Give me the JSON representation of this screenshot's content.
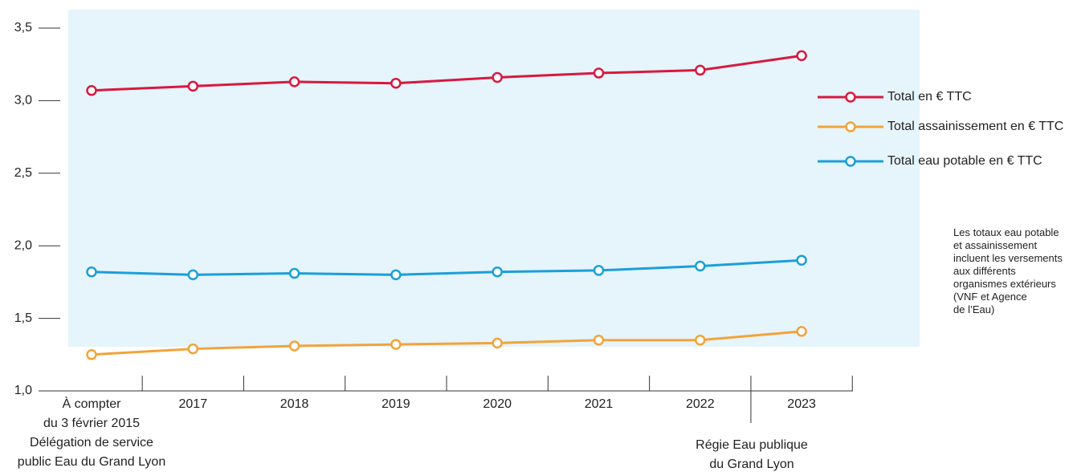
{
  "chart_data": {
    "type": "line",
    "categories": [
      "À compter\ndu 3 février 2015",
      "2017",
      "2018",
      "2019",
      "2020",
      "2021",
      "2022",
      "2023"
    ],
    "series": [
      {
        "name": "Total en € TTC",
        "color": "#d7193f",
        "values": [
          3.07,
          3.1,
          3.13,
          3.12,
          3.16,
          3.19,
          3.21,
          3.31
        ]
      },
      {
        "name": "Total assainissement en € TTC",
        "color": "#f2a33a",
        "values": [
          1.25,
          1.29,
          1.31,
          1.32,
          1.33,
          1.35,
          1.35,
          1.41
        ]
      },
      {
        "name": "Total eau potable en € TTC",
        "color": "#1a9fd9",
        "values": [
          1.82,
          1.8,
          1.81,
          1.8,
          1.82,
          1.83,
          1.86,
          1.9
        ]
      }
    ],
    "ylim": [
      1.0,
      3.5
    ],
    "yticks": [
      {
        "value": 1.0,
        "label": "1,0"
      },
      {
        "value": 1.5,
        "label": "1,5"
      },
      {
        "value": 2.0,
        "label": "2,0"
      },
      {
        "value": 2.5,
        "label": "2,5"
      },
      {
        "value": 3.0,
        "label": "3,0"
      },
      {
        "value": 3.5,
        "label": "3,5"
      }
    ],
    "annotations": [
      "Délégation de service\npublic Eau du Grand Lyon",
      "Régie Eau publique\ndu Grand Lyon"
    ],
    "note": "Les totaux eau potable\net assainissement\nincluent les versements\naux différents\norganismes extérieurs\n(VNF et Agence\nde l’Eau)"
  }
}
